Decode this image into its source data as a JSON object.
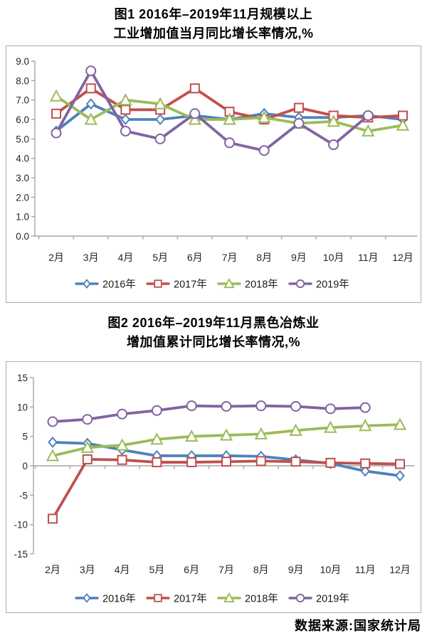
{
  "page": {
    "source_note": "数据来源:国家统计局"
  },
  "figure1": {
    "title_line1": "图1 2016年–2019年11月规模以上",
    "title_line2": "工业增加值当月同比增长率情况,%"
  },
  "figure2": {
    "title_line1": "图2 2016年–2019年11月黑色冶炼业",
    "title_line2": "增加值累计同比增长率情况,%"
  },
  "colors": {
    "series_2016": "#4F81BD",
    "series_2017": "#C0504D",
    "series_2018": "#9BBB59",
    "series_2019": "#8064A2",
    "axis_line": "#a6a6a6",
    "tick_label": "#262626"
  },
  "chart_data": [
    {
      "type": "line",
      "title": "图1 2016年–2019年11月规模以上工业增加值当月同比增长率情况,%",
      "categories": [
        "2月",
        "3月",
        "4月",
        "5月",
        "6月",
        "7月",
        "8月",
        "9月",
        "10月",
        "11月",
        "12月"
      ],
      "series": [
        {
          "name": "2016年",
          "marker": "diamond",
          "color": "#4F81BD",
          "values": [
            5.4,
            6.8,
            6.0,
            6.0,
            6.2,
            6.0,
            6.3,
            6.1,
            6.1,
            6.2,
            6.0
          ]
        },
        {
          "name": "2017年",
          "marker": "square",
          "color": "#C0504D",
          "values": [
            6.3,
            7.6,
            6.5,
            6.5,
            7.6,
            6.4,
            6.0,
            6.6,
            6.2,
            6.1,
            6.2
          ]
        },
        {
          "name": "2018年",
          "marker": "triangle",
          "color": "#9BBB59",
          "values": [
            7.2,
            6.0,
            7.0,
            6.8,
            6.0,
            6.0,
            6.1,
            5.8,
            5.9,
            5.4,
            5.7
          ]
        },
        {
          "name": "2019年",
          "marker": "circle",
          "color": "#8064A2",
          "values": [
            5.3,
            8.5,
            5.4,
            5.0,
            6.3,
            4.8,
            4.4,
            5.8,
            4.7,
            6.2,
            null
          ]
        }
      ],
      "xlabel": "",
      "ylabel": "",
      "ylim": [
        0,
        9
      ],
      "ytick_step": 1,
      "ytick_decimals": 1,
      "grid": false,
      "legend_position": "bottom"
    },
    {
      "type": "line",
      "title": "图2 2016年–2019年11月黑色冶炼业增加值累计同比增长率情况,%",
      "categories": [
        "2月",
        "3月",
        "4月",
        "5月",
        "6月",
        "7月",
        "8月",
        "9月",
        "10月",
        "11月",
        "12月"
      ],
      "series": [
        {
          "name": "2016年",
          "marker": "diamond",
          "color": "#4F81BD",
          "values": [
            4.0,
            3.8,
            2.7,
            1.7,
            1.7,
            1.7,
            1.6,
            1.0,
            0.4,
            -0.9,
            -1.7
          ]
        },
        {
          "name": "2017年",
          "marker": "square",
          "color": "#C0504D",
          "values": [
            -9.0,
            1.1,
            1.0,
            0.6,
            0.6,
            0.7,
            0.8,
            0.7,
            0.5,
            0.4,
            0.3
          ]
        },
        {
          "name": "2018年",
          "marker": "triangle",
          "color": "#9BBB59",
          "values": [
            1.7,
            3.1,
            3.5,
            4.5,
            5.0,
            5.2,
            5.4,
            6.0,
            6.5,
            6.8,
            7.0
          ]
        },
        {
          "name": "2019年",
          "marker": "circle",
          "color": "#8064A2",
          "values": [
            7.5,
            7.9,
            8.8,
            9.4,
            10.2,
            10.1,
            10.2,
            10.1,
            9.7,
            9.9,
            null
          ]
        }
      ],
      "xlabel": "",
      "ylabel": "",
      "ylim": [
        -15,
        15
      ],
      "ytick_step": 5,
      "ytick_decimals": 0,
      "grid": false,
      "legend_position": "bottom"
    }
  ]
}
